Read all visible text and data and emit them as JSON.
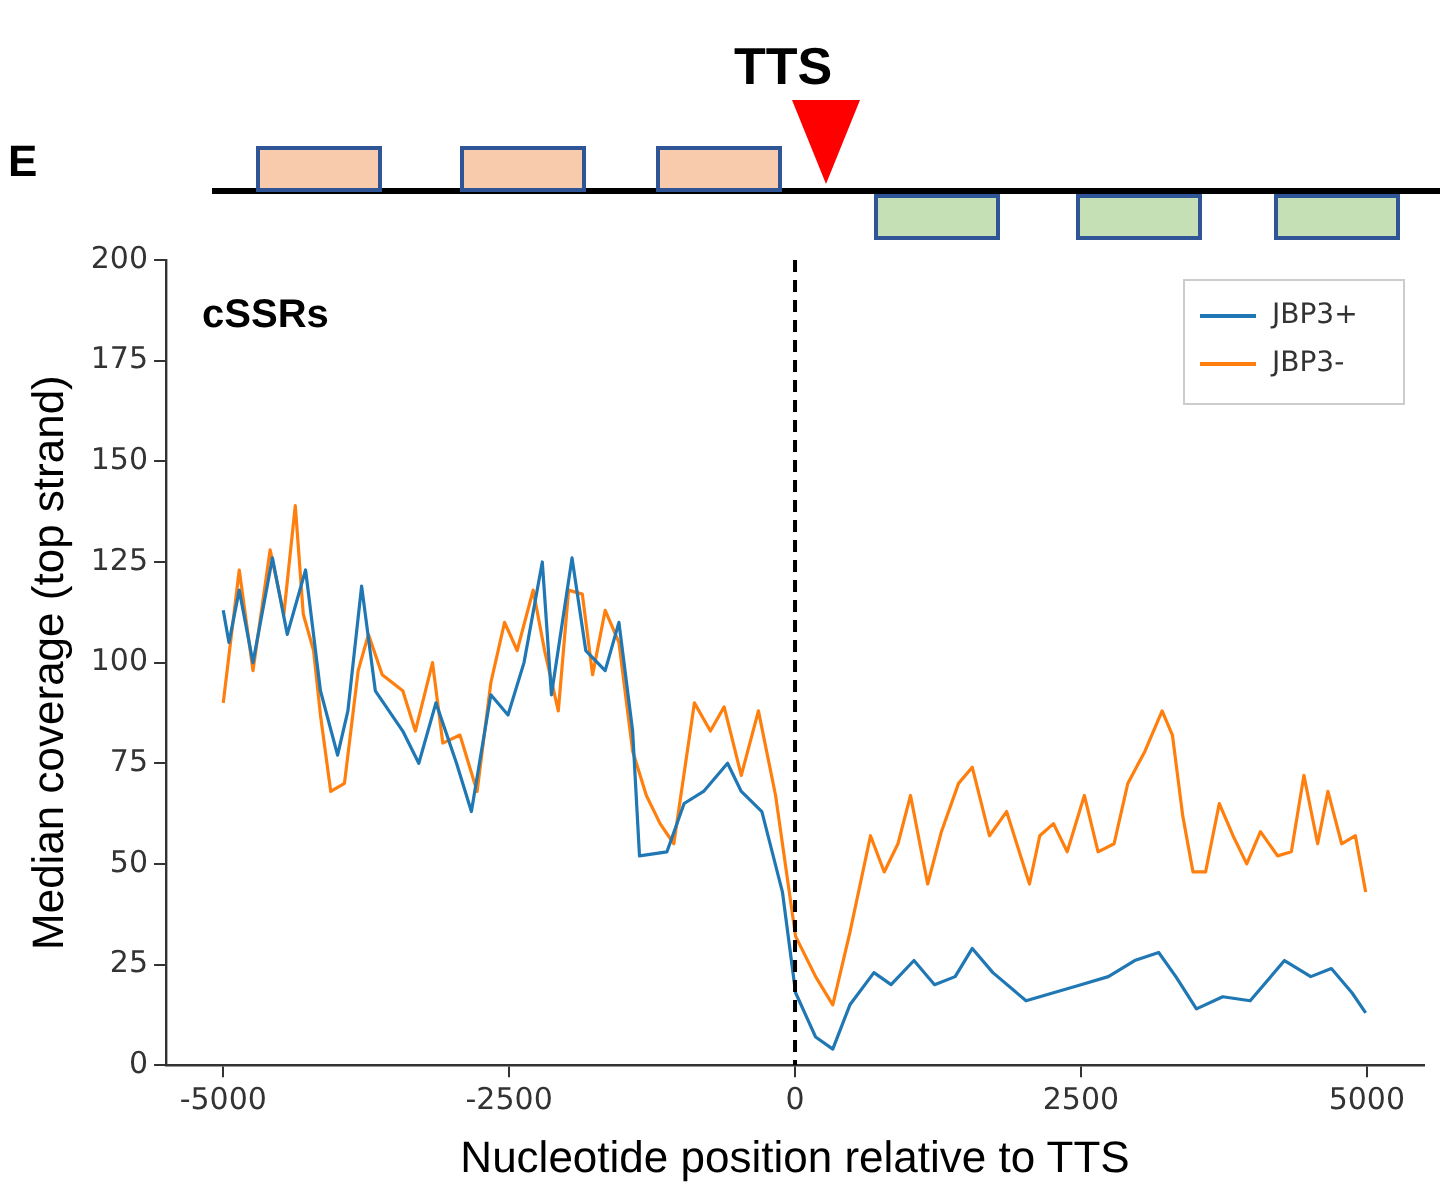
{
  "chart_data": {
    "type": "line",
    "xlabel": "Nucleotide position relative to TTS",
    "ylabel": "Median coverage (top strand)",
    "annotations": [
      "E",
      "TTS",
      "cSSRs"
    ],
    "xlim": [
      -5500,
      5500
    ],
    "xticks": [
      -5000,
      -2500,
      0,
      2500,
      5000
    ],
    "ylim": [
      0,
      200
    ],
    "yticks": [
      0,
      25,
      50,
      75,
      100,
      125,
      150,
      175,
      200
    ],
    "grid": false,
    "legend": "top right",
    "marker": "none",
    "line_style": "solid",
    "ref_lines": [
      {
        "axis": "x",
        "value": 0,
        "color": "#000000",
        "line_style": "dashed"
      }
    ],
    "series": [
      {
        "name": "JBP3+",
        "color": "#1f77b4",
        "x": [
          -5000,
          -4950,
          -4860,
          -4740,
          -4570,
          -4440,
          -4280,
          -4150,
          -4000,
          -3910,
          -3790,
          -3670,
          -3430,
          -3290,
          -3140,
          -2960,
          -2830,
          -2660,
          -2510,
          -2370,
          -2210,
          -2130,
          -1950,
          -1830,
          -1660,
          -1540,
          -1420,
          -1360,
          -1120,
          -970,
          -800,
          -590,
          -470,
          -290,
          -110,
          5,
          180,
          330,
          480,
          690,
          840,
          1040,
          1220,
          1400,
          1550,
          1730,
          2020,
          2260,
          2500,
          2740,
          2970,
          3180,
          3330,
          3510,
          3740,
          3980,
          4280,
          4510,
          4690,
          4870,
          4990
        ],
        "values": [
          113,
          105,
          118,
          100,
          126,
          107,
          123,
          93,
          77,
          88,
          119,
          93,
          83,
          75,
          90,
          75,
          63,
          92,
          87,
          100,
          125,
          92,
          126,
          103,
          98,
          110,
          83,
          52,
          53,
          65,
          68,
          75,
          68,
          63,
          43,
          18,
          7,
          4,
          15,
          23,
          20,
          26,
          20,
          22,
          29,
          23,
          16,
          18,
          20,
          22,
          26,
          28,
          22,
          14,
          17,
          16,
          26,
          22,
          24,
          18,
          13
        ]
      },
      {
        "name": "JBP3-",
        "color": "#ff7f0e",
        "x": [
          -5000,
          -4860,
          -4740,
          -4590,
          -4470,
          -4370,
          -4300,
          -4210,
          -4150,
          -4060,
          -3940,
          -3820,
          -3730,
          -3610,
          -3430,
          -3320,
          -3170,
          -3080,
          -2930,
          -2780,
          -2660,
          -2540,
          -2430,
          -2290,
          -2190,
          -2070,
          -1980,
          -1860,
          -1770,
          -1660,
          -1540,
          -1420,
          -1300,
          -1180,
          -1060,
          -880,
          -740,
          -620,
          -470,
          -320,
          -170,
          5,
          180,
          330,
          480,
          660,
          780,
          900,
          1010,
          1160,
          1280,
          1430,
          1550,
          1700,
          1850,
          2050,
          2140,
          2260,
          2380,
          2530,
          2650,
          2790,
          2910,
          3060,
          3210,
          3300,
          3390,
          3480,
          3590,
          3710,
          3830,
          3950,
          4070,
          4220,
          4340,
          4450,
          4570,
          4660,
          4780,
          4900,
          4990
        ],
        "values": [
          90,
          123,
          98,
          128,
          112,
          139,
          112,
          103,
          87,
          68,
          70,
          98,
          107,
          97,
          93,
          83,
          100,
          80,
          82,
          68,
          95,
          110,
          103,
          118,
          103,
          88,
          118,
          117,
          97,
          113,
          105,
          78,
          67,
          60,
          55,
          90,
          83,
          89,
          72,
          88,
          67,
          32,
          22,
          15,
          33,
          57,
          48,
          55,
          67,
          45,
          58,
          70,
          74,
          57,
          63,
          45,
          57,
          60,
          53,
          67,
          53,
          55,
          70,
          78,
          88,
          82,
          62,
          48,
          48,
          65,
          57,
          50,
          58,
          52,
          53,
          72,
          55,
          68,
          55,
          57,
          43
        ]
      }
    ]
  }
}
